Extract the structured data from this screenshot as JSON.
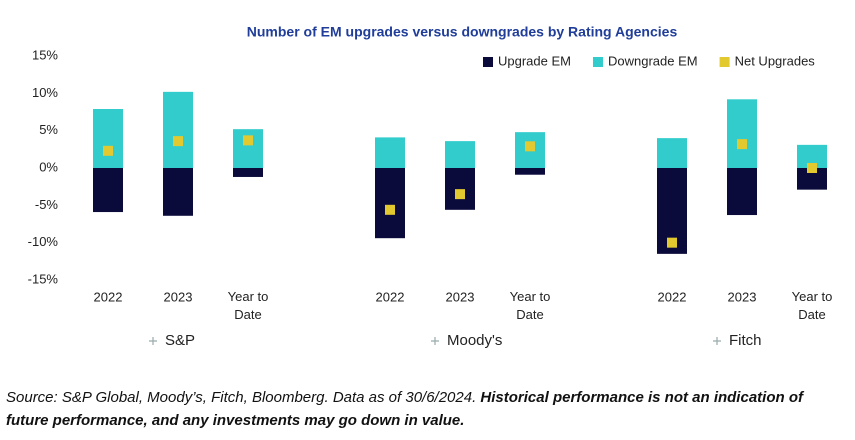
{
  "chart_data": {
    "type": "bar",
    "title": "Number of EM upgrades versus downgrades by Rating Agencies",
    "groups": [
      "S&P",
      "Moody's",
      "Fitch"
    ],
    "categories": [
      "2022",
      "2023",
      "Year to Date",
      "2022",
      "2023",
      "Year to Date",
      "2022",
      "2023",
      "Year to Date"
    ],
    "series": [
      {
        "name": "Upgrade EM",
        "type": "bar",
        "color": "#0b0b3b",
        "values": [
          -5.9,
          -6.4,
          -1.2,
          -9.4,
          -5.6,
          -0.9,
          -11.5,
          -6.3,
          -2.9
        ]
      },
      {
        "name": "Downgrade EM",
        "type": "bar",
        "color": "#33cccc",
        "values": [
          7.9,
          10.2,
          5.2,
          4.1,
          3.6,
          4.8,
          4.0,
          9.2,
          3.1
        ]
      },
      {
        "name": "Net Upgrades",
        "type": "point",
        "color": "#e3c930",
        "values": [
          2.3,
          3.6,
          3.7,
          -5.6,
          -3.5,
          2.9,
          -10.0,
          3.2,
          0
        ]
      }
    ],
    "ylim": [
      -15,
      15
    ],
    "yticks": [
      {
        "value": -15,
        "label": "-15%"
      },
      {
        "value": -10,
        "label": "-10%"
      },
      {
        "value": -5,
        "label": "-5%"
      },
      {
        "value": 0,
        "label": "0%"
      },
      {
        "value": 5,
        "label": "5%"
      },
      {
        "value": 10,
        "label": "10%"
      },
      {
        "value": 15,
        "label": "15%"
      }
    ],
    "grid": false,
    "legend": "top-right"
  },
  "footnote": {
    "text": "Source: S&P Global, Moody’s, Fitch, Bloomberg. Data as of 30/6/2024. ",
    "emphasis": "Historical performance is not an indication of future performance, and any investments may go down in value."
  }
}
